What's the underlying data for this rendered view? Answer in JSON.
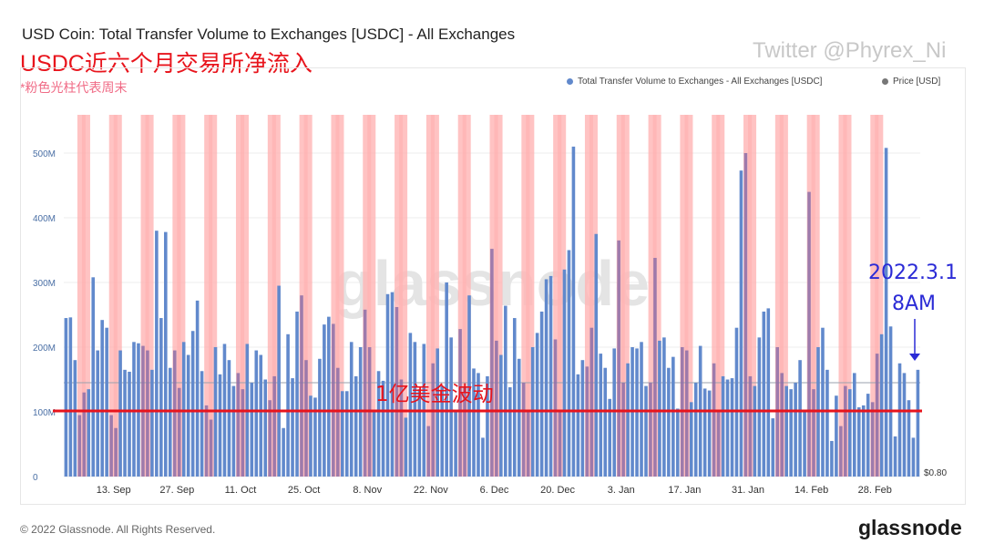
{
  "title": "USD Coin: Total Transfer Volume to Exchanges [USDC] - All Exchanges",
  "subtitle_cn": "USDC近六个月交易所净流入",
  "note_cn": "*粉色光柱代表周末",
  "twitter": "Twitter @Phyrex_Ni",
  "watermark": "glassnode",
  "footer_copyright": "© 2022 Glassnode. All Rights Reserved.",
  "footer_logo": "glassnode",
  "annotation_band": "1亿美金波动",
  "annotation_date": "2022.3.1",
  "annotation_time": "8AM",
  "colors": {
    "bar": "#6189cc",
    "weekend": "#ffb4b4",
    "redline": "#e8141c",
    "annotation_blue": "#2b2bd6",
    "price_dot": "#777777"
  },
  "chart_data": {
    "type": "bar",
    "legend": [
      {
        "name": "Total Transfer Volume to Exchanges - All Exchanges [USDC]",
        "color": "#6189cc"
      },
      {
        "name": "Price [USD]",
        "color": "#777777"
      }
    ],
    "y_ticks": [
      "0",
      "100M",
      "200M",
      "300M",
      "400M",
      "500M"
    ],
    "ylim": [
      0,
      560
    ],
    "y_unit": "M",
    "right_label": "$0.80",
    "x_ticks": [
      "13. Sep",
      "27. Sep",
      "11. Oct",
      "25. Oct",
      "8. Nov",
      "22. Nov",
      "6. Dec",
      "20. Dec",
      "3. Jan",
      "17. Jan",
      "31. Jan",
      "14. Feb",
      "28. Feb"
    ],
    "x_tick_index": [
      10,
      24,
      38,
      52,
      66,
      80,
      94,
      108,
      122,
      136,
      150,
      164,
      178
    ],
    "reference_line": 100,
    "weekend_indices": [
      3,
      4,
      10,
      11,
      17,
      18,
      24,
      25,
      31,
      32,
      38,
      39,
      45,
      46,
      52,
      53,
      59,
      60,
      66,
      67,
      73,
      74,
      80,
      81,
      87,
      88,
      94,
      95,
      101,
      102,
      108,
      109,
      115,
      116,
      122,
      123,
      129,
      130,
      136,
      137,
      143,
      144,
      150,
      151,
      157,
      158,
      164,
      165,
      171,
      172,
      178,
      179
    ],
    "values": [
      245,
      246,
      180,
      95,
      130,
      135,
      308,
      195,
      242,
      230,
      95,
      75,
      195,
      165,
      162,
      208,
      206,
      202,
      195,
      165,
      380,
      245,
      378,
      168,
      195,
      137,
      208,
      188,
      225,
      272,
      163,
      110,
      88,
      200,
      158,
      205,
      180,
      140,
      160,
      135,
      205,
      145,
      195,
      188,
      150,
      118,
      155,
      295,
      75,
      220,
      152,
      255,
      280,
      180,
      125,
      122,
      182,
      235,
      247,
      236,
      168,
      132,
      132,
      208,
      155,
      200,
      258,
      200,
      100,
      163,
      148,
      282,
      285,
      262,
      150,
      91,
      222,
      208,
      135,
      205,
      78,
      175,
      198,
      140,
      300,
      215,
      100,
      228,
      138,
      280,
      167,
      160,
      60,
      155,
      352,
      210,
      188,
      264,
      138,
      245,
      182,
      145,
      100,
      200,
      222,
      255,
      305,
      310,
      212,
      100,
      320,
      350,
      510,
      158,
      180,
      170,
      230,
      375,
      190,
      168,
      120,
      198,
      365,
      145,
      175,
      200,
      198,
      208,
      140,
      145,
      338,
      210,
      215,
      168,
      185,
      105,
      200,
      195,
      115,
      145,
      202,
      136,
      133,
      175,
      100,
      155,
      150,
      152,
      230,
      473,
      500,
      155,
      140,
      215,
      255,
      260,
      90,
      200,
      160,
      140,
      135,
      145,
      180,
      100,
      440,
      135,
      200,
      230,
      165,
      55,
      125,
      78,
      140,
      135,
      160,
      107,
      110,
      128,
      115,
      190,
      220,
      508,
      232,
      62,
      175,
      160,
      118,
      60,
      165
    ]
  }
}
